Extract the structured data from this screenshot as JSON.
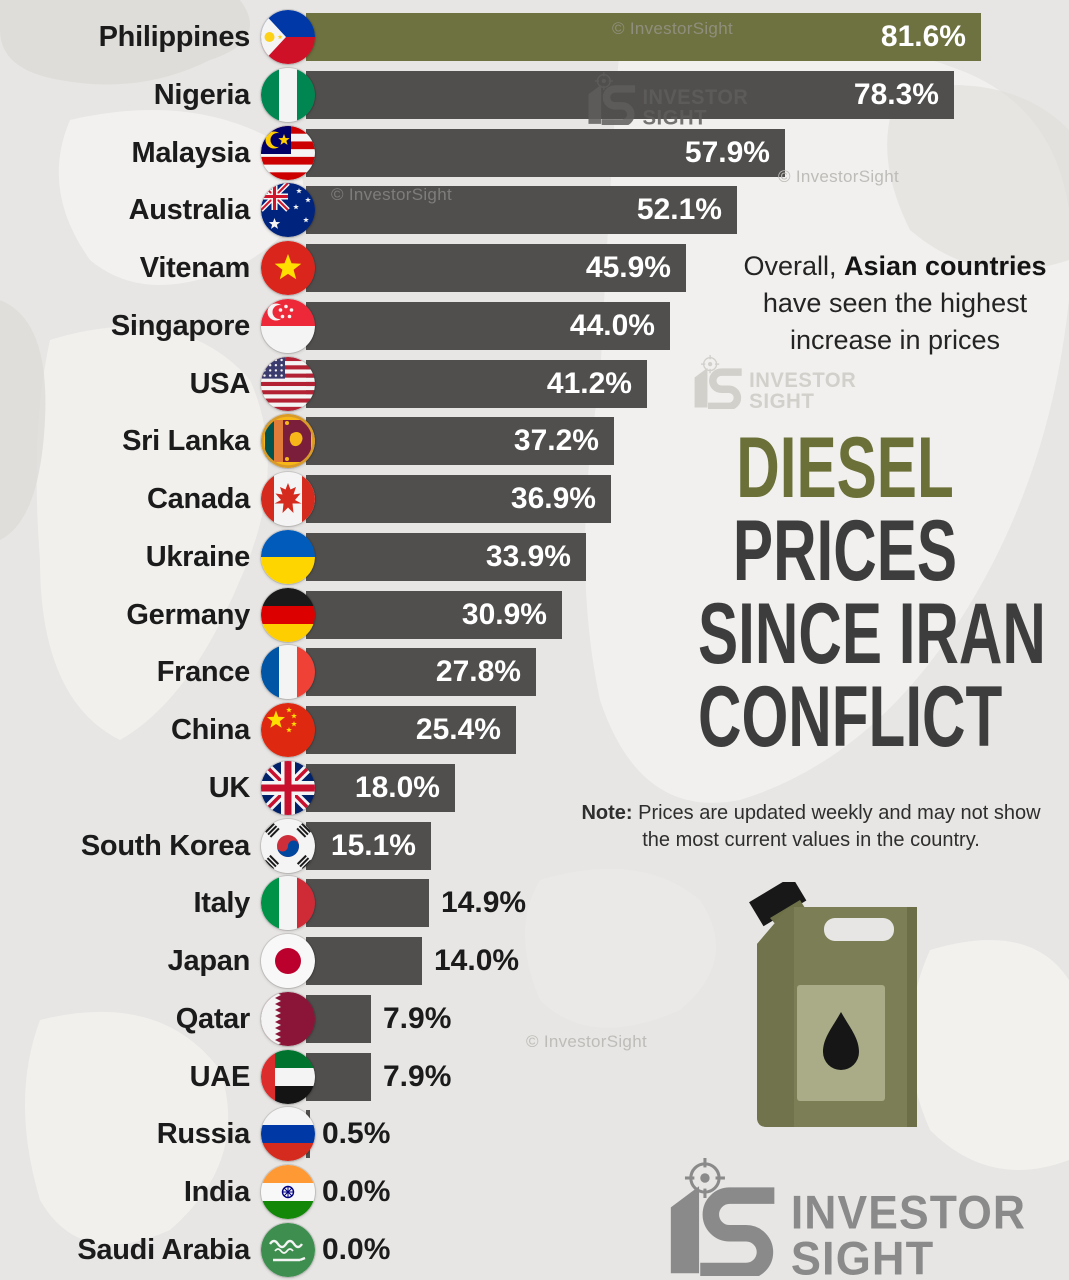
{
  "title": {
    "line1": "DIESEL",
    "line2": "PRICES",
    "line3": "SINCE IRAN",
    "line4": "CONFLICT"
  },
  "annotation": {
    "prefix": "Overall, ",
    "bold": "Asian countries",
    "line2": "have seen the highest",
    "line3": "increase in prices"
  },
  "note": {
    "label": "Note:",
    "text1": " Prices are updated weekly and may not show",
    "text2": "the most current values in the country."
  },
  "watermarks": {
    "copyright": "© InvestorSight",
    "brand_line1": "INVESTOR",
    "brand_line2": "SIGHT"
  },
  "logo": {
    "line1": "INVESTOR",
    "line2": "SIGHT"
  },
  "colors": {
    "accent_olive": "#6e7240",
    "bar_gray": "#504f4d",
    "title_dark": "#3d3d3d",
    "title_olive": "#6b7038",
    "background": "#e7e6e4",
    "logo_gray": "#8a8a8a",
    "value_inside": "#ffffff",
    "value_outside": "#1b1b1b"
  },
  "chart_data": {
    "type": "bar",
    "orientation": "horizontal",
    "unit": "%",
    "xlim": [
      0,
      85
    ],
    "grid": false,
    "legend": "none",
    "highlight_category": "Philippines",
    "categories": [
      "Philippines",
      "Nigeria",
      "Malaysia",
      "Australia",
      "Vitenam",
      "Singapore",
      "USA",
      "Sri Lanka",
      "Canada",
      "Ukraine",
      "Germany",
      "France",
      "China",
      "UK",
      "South Korea",
      "Italy",
      "Japan",
      "Qatar",
      "UAE",
      "Russia",
      "India",
      "Saudi Arabia"
    ],
    "values": [
      81.6,
      78.3,
      57.9,
      52.1,
      45.9,
      44.0,
      41.2,
      37.2,
      36.9,
      33.9,
      30.9,
      27.8,
      25.4,
      18.0,
      15.1,
      14.9,
      14.0,
      7.9,
      7.9,
      0.5,
      0.0,
      0.0
    ],
    "labels": [
      "81.6%",
      "78.3%",
      "57.9%",
      "52.1%",
      "45.9%",
      "44.0%",
      "41.2%",
      "37.2%",
      "36.9%",
      "33.9%",
      "30.9%",
      "27.8%",
      "25.4%",
      "18.0%",
      "15.1%",
      "14.9%",
      "14.0%",
      "7.9%",
      "7.9%",
      "0.5%",
      "0.0%",
      "0.0%"
    ],
    "flags": [
      "philippines",
      "nigeria",
      "malaysia",
      "australia",
      "vietnam",
      "singapore",
      "usa",
      "sri-lanka",
      "canada",
      "ukraine",
      "germany",
      "france",
      "china",
      "uk",
      "south-korea",
      "italy",
      "japan",
      "qatar",
      "uae",
      "russia",
      "india",
      "saudi-arabia"
    ]
  }
}
